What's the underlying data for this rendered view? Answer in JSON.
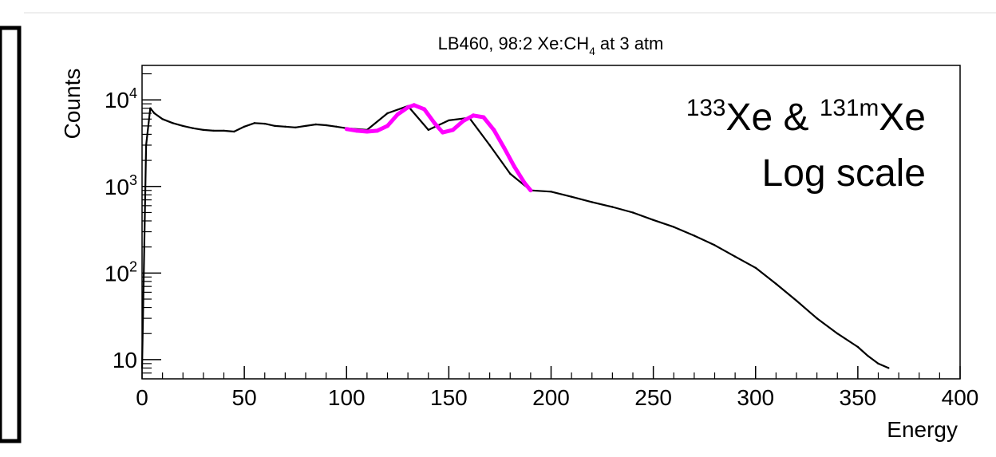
{
  "chart_data": {
    "type": "line",
    "title_text": "LB460, 98:2 Xe:CH",
    "title_subscript": "4",
    "title_suffix": " at 3 atm",
    "xlabel": "Energy",
    "ylabel": "Counts",
    "xlim": [
      0,
      400
    ],
    "ylim": [
      6,
      25000
    ],
    "log_y": true,
    "x_ticks": [
      "0",
      "50",
      "100",
      "150",
      "200",
      "250",
      "300",
      "350",
      "400"
    ],
    "y_ticks": [
      {
        "value": 10,
        "base": "10",
        "exp": ""
      },
      {
        "value": 100,
        "base": "10",
        "exp": "2"
      },
      {
        "value": 1000,
        "base": "10",
        "exp": "3"
      },
      {
        "value": 10000,
        "base": "10",
        "exp": "4"
      }
    ],
    "annotation": {
      "line1_sup1": "133",
      "line1_a": "Xe & ",
      "line1_sup2": "131m",
      "line1_b": "Xe",
      "line2": "Log scale"
    },
    "series": [
      {
        "color": "#000000",
        "x": [
          0,
          2,
          4,
          6,
          10,
          15,
          20,
          25,
          30,
          35,
          40,
          45,
          50,
          55,
          60,
          65,
          70,
          75,
          80,
          85,
          90,
          95,
          100,
          110,
          120,
          130,
          140,
          150,
          160,
          170,
          180,
          190,
          200,
          210,
          220,
          230,
          240,
          250,
          260,
          270,
          280,
          290,
          300,
          310,
          320,
          330,
          340,
          350,
          355,
          360,
          365
        ],
        "y": [
          8,
          3000,
          8000,
          7000,
          6000,
          5400,
          5000,
          4700,
          4500,
          4400,
          4400,
          4300,
          4900,
          5400,
          5300,
          5000,
          4900,
          4800,
          5000,
          5200,
          5100,
          4900,
          4700,
          4500,
          7000,
          8500,
          4500,
          5800,
          6200,
          3000,
          1400,
          900,
          870,
          760,
          660,
          580,
          500,
          410,
          340,
          270,
          210,
          155,
          115,
          75,
          48,
          30,
          20,
          14,
          11,
          9,
          8
        ]
      },
      {
        "color": "#ff00ff",
        "x": [
          100,
          105,
          110,
          115,
          120,
          125,
          130,
          133,
          138,
          143,
          147,
          152,
          157,
          162,
          167,
          172,
          177,
          182,
          187,
          190
        ],
        "y": [
          4600,
          4400,
          4300,
          4400,
          5000,
          6800,
          8200,
          8700,
          7800,
          5400,
          4200,
          4500,
          5700,
          6600,
          6300,
          4500,
          2800,
          1700,
          1100,
          900
        ]
      }
    ]
  }
}
